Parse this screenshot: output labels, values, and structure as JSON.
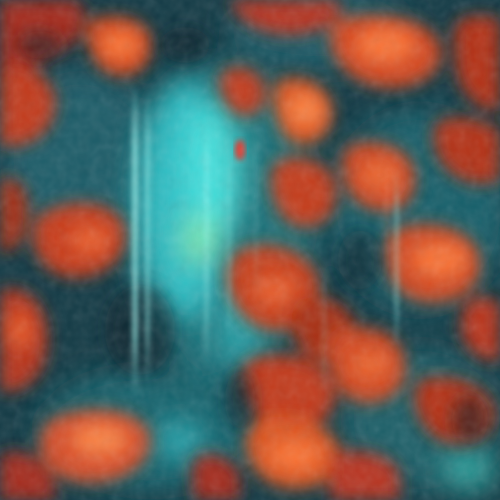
{
  "artwork": {
    "palette": {
      "dark_teal": "#123a45",
      "deep_shadow": "#0b1d26",
      "teal": "#1b6f78",
      "cyan": "#37d9df",
      "mint": "#8af2ec",
      "red": "#a92f1e",
      "orange": "#e85b2b",
      "highlight_orange": "#ff7a3a"
    }
  }
}
